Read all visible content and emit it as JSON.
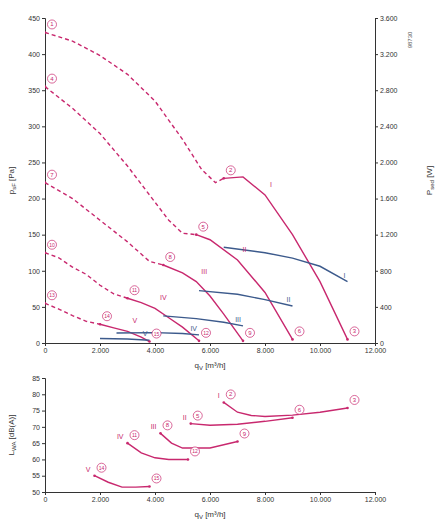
{
  "chart_data": [
    {
      "type": "line",
      "annotation": "98730",
      "color": "#c8286e",
      "grid": false,
      "xlabel": {
        "text": "q",
        "sub": "V",
        "suffix": " [m³/h]"
      },
      "ylabel": {
        "text": "p",
        "sub": "sF",
        "suffix": " [Pa]"
      },
      "y2label": {
        "text": "P",
        "sub": "sed",
        "suffix": " [W]"
      },
      "xlim": [
        0,
        12000
      ],
      "xticks": [
        0,
        {
          "value": 2000,
          "label": "2.000"
        },
        {
          "value": 4000,
          "label": "4.000"
        },
        {
          "value": 6000,
          "label": "6.000"
        },
        {
          "value": 8000,
          "label": "8.000"
        },
        {
          "value": 10000,
          "label": "10.000"
        },
        {
          "value": 12000,
          "label": "12.000"
        }
      ],
      "ylim": [
        0,
        450
      ],
      "yticks": [
        0,
        50,
        100,
        150,
        200,
        250,
        300,
        350,
        400,
        450
      ],
      "y2lim": [
        0,
        3600
      ],
      "y2ticks": [
        0,
        400,
        800,
        {
          "value": 1200,
          "label": "1.200"
        },
        {
          "value": 1600,
          "label": "1.600"
        },
        {
          "value": 2000,
          "label": "2.000"
        },
        {
          "value": 2400,
          "label": "2.400"
        },
        {
          "value": 2800,
          "label": "2.800"
        },
        {
          "value": 3200,
          "label": "3.200"
        },
        {
          "value": 3600,
          "label": "3.600"
        }
      ],
      "series": [
        {
          "color": "#c8286e",
          "line_style": "dashed",
          "x": [
            0,
            1000,
            2000,
            3000,
            4000,
            5000,
            5700,
            6200,
            6500
          ],
          "values": [
            430,
            418,
            398,
            372,
            335,
            282,
            240,
            222,
            228
          ]
        },
        {
          "color": "#c8286e",
          "line_style": "dashed",
          "x": [
            0,
            1000,
            2000,
            3000,
            4000,
            4500,
            5000,
            5500
          ],
          "values": [
            355,
            325,
            290,
            245,
            195,
            170,
            152,
            150
          ]
        },
        {
          "color": "#c8286e",
          "line_style": "dashed",
          "x": [
            0,
            1000,
            2000,
            3000,
            3800,
            4300
          ],
          "values": [
            222,
            200,
            170,
            140,
            113,
            108
          ]
        },
        {
          "color": "#c8286e",
          "line_style": "dashed",
          "x": [
            0,
            500,
            1000,
            1500,
            2000,
            2500,
            3000
          ],
          "values": [
            125,
            118,
            105,
            95,
            80,
            68,
            62
          ]
        },
        {
          "color": "#c8286e",
          "line_style": "dashed",
          "x": [
            0,
            500,
            1000,
            1500,
            2000
          ],
          "values": [
            55,
            47,
            38,
            30,
            26
          ]
        },
        {
          "name": "I",
          "color": "#c8286e",
          "line_style": "solid",
          "x": [
            6500,
            7200,
            8000,
            9000,
            10000,
            11000
          ],
          "values": [
            228,
            230,
            205,
            150,
            85,
            5
          ]
        },
        {
          "name": "II",
          "color": "#c8286e",
          "line_style": "solid",
          "x": [
            5500,
            6000,
            7000,
            8000,
            9000
          ],
          "values": [
            150,
            143,
            115,
            70,
            5
          ]
        },
        {
          "name": "III",
          "color": "#c8286e",
          "line_style": "solid",
          "x": [
            4300,
            5000,
            5500,
            6000,
            6500,
            7200
          ],
          "values": [
            108,
            97,
            85,
            65,
            40,
            3
          ]
        },
        {
          "name": "IV",
          "color": "#c8286e",
          "line_style": "solid",
          "x": [
            3000,
            3500,
            4000,
            4500,
            5000,
            5600
          ],
          "values": [
            62,
            56,
            48,
            35,
            22,
            3
          ]
        },
        {
          "name": "V",
          "color": "#c8286e",
          "line_style": "solid",
          "x": [
            2000,
            2500,
            3000,
            3500,
            3800
          ],
          "values": [
            26,
            21,
            16,
            8,
            2
          ]
        },
        {
          "name": "I",
          "color": "#3c5a8c",
          "line_style": "solid",
          "axis": "y2",
          "x": [
            6500,
            8000,
            9000,
            10000,
            11000
          ],
          "values": [
            1060,
            1000,
            940,
            850,
            680
          ]
        },
        {
          "name": "II",
          "color": "#3c5a8c",
          "line_style": "solid",
          "axis": "y2",
          "x": [
            5600,
            7000,
            8000,
            9000
          ],
          "values": [
            580,
            540,
            480,
            410
          ]
        },
        {
          "name": "III",
          "color": "#3c5a8c",
          "line_style": "solid",
          "axis": "y2",
          "x": [
            4300,
            5500,
            6500,
            7200
          ],
          "values": [
            300,
            270,
            230,
            190
          ]
        },
        {
          "name": "IV",
          "color": "#3c5a8c",
          "line_style": "solid",
          "axis": "y2",
          "x": [
            2600,
            4000,
            5000,
            5600
          ],
          "values": [
            110,
            115,
            105,
            90
          ]
        },
        {
          "name": "V",
          "color": "#3c5a8c",
          "line_style": "solid",
          "axis": "y2",
          "x": [
            2000,
            3000,
            3800
          ],
          "values": [
            50,
            45,
            30
          ]
        }
      ],
      "points": [
        {
          "label": "1",
          "x": 0,
          "y": 430
        },
        {
          "label": "2",
          "x": 6500,
          "y": 228
        },
        {
          "label": "3",
          "x": 11000,
          "y": 5
        },
        {
          "label": "4",
          "x": 0,
          "y": 355
        },
        {
          "label": "5",
          "x": 5500,
          "y": 150
        },
        {
          "label": "6",
          "x": 9000,
          "y": 5
        },
        {
          "label": "7",
          "x": 0,
          "y": 222
        },
        {
          "label": "8",
          "x": 4300,
          "y": 108
        },
        {
          "label": "9",
          "x": 7200,
          "y": 3
        },
        {
          "label": "10",
          "x": 0,
          "y": 125
        },
        {
          "label": "11",
          "x": 3000,
          "y": 62
        },
        {
          "label": "12",
          "x": 5600,
          "y": 3
        },
        {
          "label": "13",
          "x": 0,
          "y": 55
        },
        {
          "label": "14",
          "x": 2000,
          "y": 26
        },
        {
          "label": "15",
          "x": 3800,
          "y": 2
        }
      ]
    },
    {
      "type": "line",
      "color": "#c8286e",
      "grid": false,
      "xlabel": {
        "text": "q",
        "sub": "V",
        "suffix": " [m³/h]"
      },
      "ylabel": {
        "text": "L",
        "sub": "WA",
        "suffix": " [dB(A)]"
      },
      "xlim": [
        0,
        12000
      ],
      "xticks": [
        0,
        {
          "value": 2000,
          "label": "2.000"
        },
        {
          "value": 4000,
          "label": "4.000"
        },
        {
          "value": 6000,
          "label": "6.000"
        },
        {
          "value": 8000,
          "label": "8.000"
        },
        {
          "value": 10000,
          "label": "10.000"
        },
        {
          "value": 12000,
          "label": "12.000"
        }
      ],
      "ylim": [
        50,
        85
      ],
      "yticks": [
        50,
        55,
        60,
        65,
        70,
        75,
        80,
        85
      ],
      "series": [
        {
          "name": "I",
          "color": "#c8286e",
          "line_style": "solid",
          "x": [
            6500,
            7000,
            7500,
            8000,
            9000,
            10000,
            11000
          ],
          "values": [
            77.5,
            74.5,
            73.5,
            73.2,
            73.6,
            74.5,
            75.8
          ]
        },
        {
          "name": "II",
          "color": "#c8286e",
          "line_style": "solid",
          "x": [
            5300,
            6000,
            7000,
            8000,
            9000
          ],
          "values": [
            71,
            70.5,
            70.8,
            71.7,
            72.8
          ]
        },
        {
          "name": "III",
          "color": "#c8286e",
          "line_style": "solid",
          "x": [
            4200,
            4600,
            5000,
            6000,
            7000
          ],
          "values": [
            68,
            65,
            63.5,
            63.5,
            65.5
          ]
        },
        {
          "name": "IV",
          "color": "#c8286e",
          "line_style": "solid",
          "x": [
            3000,
            3500,
            4000,
            4500,
            5200
          ],
          "values": [
            65,
            62,
            60.5,
            60,
            60
          ]
        },
        {
          "name": "V",
          "color": "#c8286e",
          "line_style": "solid",
          "x": [
            1800,
            2300,
            2800,
            3300,
            3800
          ],
          "values": [
            55,
            53,
            51.5,
            51.5,
            51.7
          ]
        }
      ],
      "points": [
        {
          "label": "2",
          "x": 6500,
          "y": 77.5
        },
        {
          "label": "3",
          "x": 11000,
          "y": 75.8
        },
        {
          "label": "5",
          "x": 5300,
          "y": 71
        },
        {
          "label": "6",
          "x": 9000,
          "y": 72.8
        },
        {
          "label": "8",
          "x": 4200,
          "y": 68
        },
        {
          "label": "9",
          "x": 7000,
          "y": 65.5
        },
        {
          "label": "11",
          "x": 3000,
          "y": 65
        },
        {
          "label": "12",
          "x": 5200,
          "y": 60
        },
        {
          "label": "14",
          "x": 1800,
          "y": 55
        },
        {
          "label": "15",
          "x": 3800,
          "y": 51.7
        }
      ]
    }
  ]
}
